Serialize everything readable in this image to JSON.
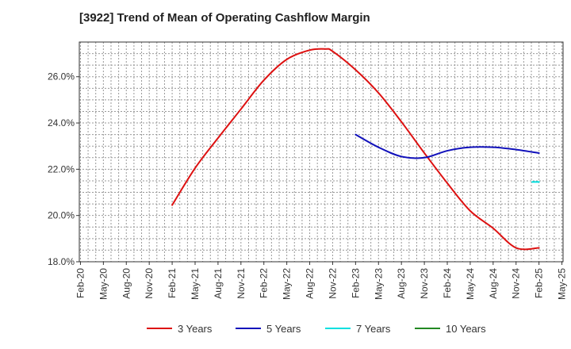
{
  "chart_data": {
    "type": "line",
    "title": "[3922]  Trend of Mean of Operating Cashflow Margin",
    "xlabel": "",
    "ylabel": "",
    "x_ticks": [
      "Feb-20",
      "May-20",
      "Aug-20",
      "Nov-20",
      "Feb-21",
      "May-21",
      "Aug-21",
      "Nov-21",
      "Feb-22",
      "May-22",
      "Aug-22",
      "Nov-22",
      "Feb-23",
      "May-23",
      "Aug-23",
      "Nov-23",
      "Feb-24",
      "May-24",
      "Aug-24",
      "Nov-24",
      "Feb-25",
      "May-25"
    ],
    "ylim": [
      18.0,
      27.5
    ],
    "y_ticks": [
      18.0,
      20.0,
      22.0,
      24.0,
      26.0
    ],
    "y_tick_labels": [
      "18.0%",
      "20.0%",
      "22.0%",
      "24.0%",
      "26.0%"
    ],
    "grid": true,
    "legend_position": "bottom",
    "series": [
      {
        "name": "3 Years",
        "color": "#dd1111",
        "x_index": [
          4,
          5,
          6,
          7,
          8,
          9,
          10,
          10.7,
          11,
          12,
          13,
          14,
          15,
          16,
          17,
          18,
          19,
          20
        ],
        "values": [
          20.45,
          22.05,
          23.35,
          24.6,
          25.85,
          26.75,
          27.15,
          27.2,
          27.1,
          26.3,
          25.3,
          24.05,
          22.7,
          21.4,
          20.2,
          19.45,
          18.6,
          18.6
        ]
      },
      {
        "name": "5 Years",
        "color": "#1111bb",
        "x_index": [
          12,
          13,
          14,
          15,
          16,
          17,
          18,
          19,
          20
        ],
        "values": [
          23.5,
          22.95,
          22.55,
          22.5,
          22.8,
          22.95,
          22.95,
          22.85,
          22.7
        ]
      },
      {
        "name": "7 Years",
        "color": "#00e0e0",
        "x_index": [
          19.7,
          20
        ],
        "values": [
          21.45,
          21.45
        ]
      },
      {
        "name": "10 Years",
        "color": "#228822",
        "x_index": [],
        "values": []
      }
    ]
  }
}
